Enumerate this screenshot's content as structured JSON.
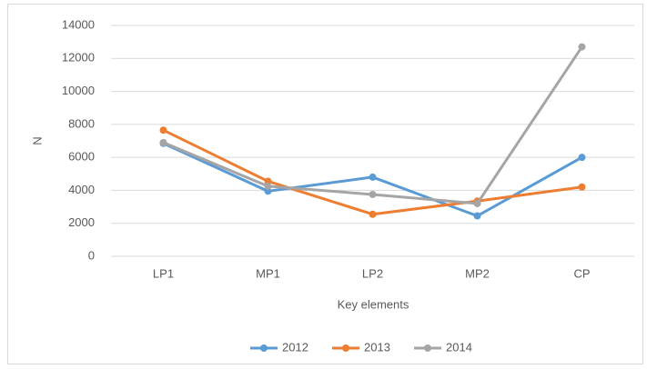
{
  "chart_data": {
    "type": "line",
    "x_label": "Key elements",
    "y_label": "N",
    "categories": [
      "LP1",
      "MP1",
      "LP2",
      "MP2",
      "CP"
    ],
    "series": [
      {
        "name": "2012",
        "color": "#5b9bd5",
        "values": [
          6850,
          3950,
          4800,
          2450,
          6000
        ]
      },
      {
        "name": "2013",
        "color": "#ed7d31",
        "values": [
          7650,
          4550,
          2550,
          3350,
          4200
        ]
      },
      {
        "name": "2014",
        "color": "#a5a5a5",
        "values": [
          6900,
          4250,
          3750,
          3200,
          12700
        ]
      }
    ],
    "ylim": [
      0,
      14000
    ],
    "yticks": [
      0,
      2000,
      4000,
      6000,
      8000,
      10000,
      12000,
      14000
    ],
    "grid": true,
    "legend": "bottom"
  }
}
